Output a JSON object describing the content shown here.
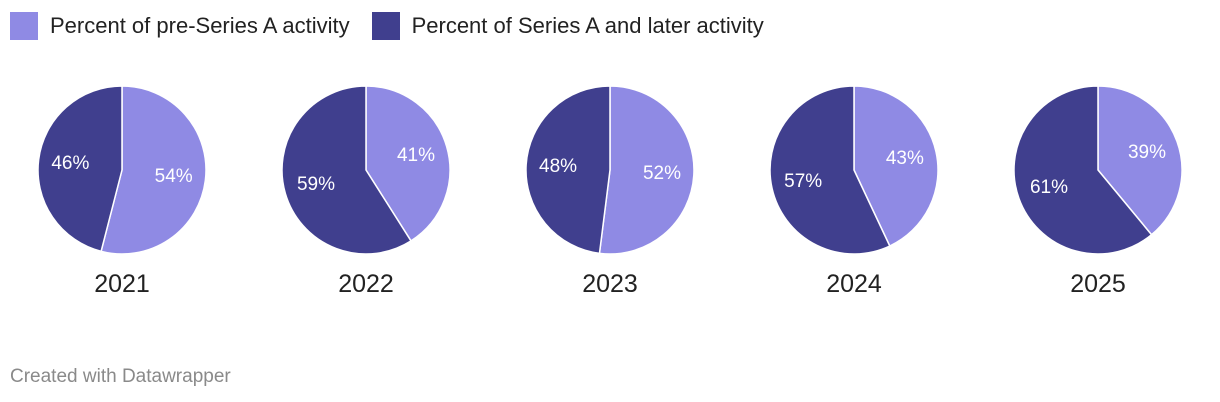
{
  "chart_data": {
    "type": "pie",
    "series": [
      {
        "name": "Percent of pre-Series A activity",
        "color": "#8f8ae4"
      },
      {
        "name": "Percent of Series A and later activity",
        "color": "#403f8e"
      }
    ],
    "pies": [
      {
        "year": "2021",
        "values": [
          54,
          46
        ],
        "labels": [
          "54%",
          "46%"
        ]
      },
      {
        "year": "2022",
        "values": [
          41,
          59
        ],
        "labels": [
          "41%",
          "59%"
        ]
      },
      {
        "year": "2023",
        "values": [
          52,
          48
        ],
        "labels": [
          "52%",
          "48%"
        ]
      },
      {
        "year": "2024",
        "values": [
          43,
          57
        ],
        "labels": [
          "43%",
          "57%"
        ]
      },
      {
        "year": "2025",
        "values": [
          39,
          61
        ],
        "labels": [
          "39%",
          "61%"
        ]
      }
    ],
    "legend_position": "top-left"
  },
  "footer": {
    "credit": "Created with Datawrapper"
  }
}
